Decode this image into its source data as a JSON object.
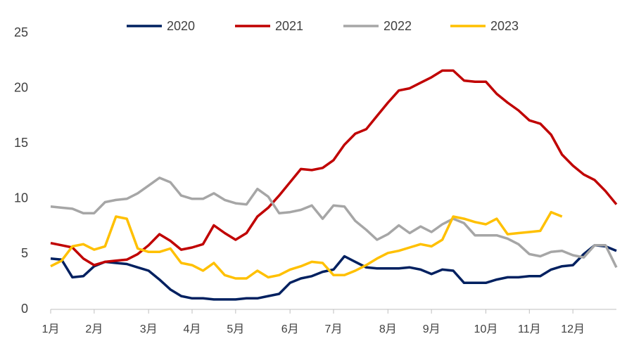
{
  "chart_data": {
    "type": "line",
    "categories": [
      "1月",
      null,
      null,
      null,
      "2月",
      null,
      null,
      null,
      null,
      "3月",
      null,
      null,
      null,
      "4月",
      null,
      null,
      null,
      "5月",
      null,
      null,
      null,
      null,
      "6月",
      null,
      null,
      null,
      "7月",
      null,
      null,
      null,
      null,
      "8月",
      null,
      null,
      null,
      "9月",
      null,
      null,
      null,
      null,
      "10月",
      null,
      null,
      null,
      "11月",
      null,
      null,
      null,
      "12月",
      null,
      null,
      null,
      null
    ],
    "series": [
      {
        "name": "2020",
        "color": "#002060",
        "values": [
          4.6,
          4.5,
          2.9,
          3.0,
          3.9,
          4.3,
          4.2,
          4.1,
          3.8,
          3.5,
          2.7,
          1.8,
          1.2,
          1.0,
          1.0,
          0.9,
          0.9,
          0.9,
          1.0,
          1.0,
          1.2,
          1.4,
          2.4,
          2.8,
          3.0,
          3.4,
          3.6,
          4.8,
          4.3,
          3.8,
          3.7,
          3.7,
          3.7,
          3.8,
          3.6,
          3.2,
          3.6,
          3.5,
          2.4,
          2.4,
          2.4,
          2.7,
          2.9,
          2.9,
          3.0,
          3.0,
          3.6,
          3.9,
          4.0,
          5.0,
          5.8,
          5.7,
          5.3
        ]
      },
      {
        "name": "2021",
        "color": "#c00000",
        "values": [
          6.0,
          5.8,
          5.6,
          4.6,
          4.0,
          4.3,
          4.4,
          4.5,
          5.0,
          5.8,
          6.8,
          6.2,
          5.4,
          5.6,
          5.9,
          7.6,
          6.9,
          6.3,
          6.9,
          8.4,
          9.2,
          10.3,
          11.5,
          12.7,
          12.6,
          12.8,
          13.5,
          14.9,
          15.9,
          16.3,
          17.5,
          18.7,
          19.8,
          20.0,
          20.5,
          21.0,
          21.6,
          21.6,
          20.7,
          20.6,
          20.6,
          19.5,
          18.7,
          18.0,
          17.1,
          16.8,
          15.8,
          14.0,
          13.0,
          12.2,
          11.7,
          10.7,
          9.5
        ]
      },
      {
        "name": "2022",
        "color": "#a6a6a6",
        "values": [
          9.3,
          9.2,
          9.1,
          8.7,
          8.7,
          9.7,
          9.9,
          10.0,
          10.5,
          11.2,
          11.9,
          11.5,
          10.3,
          10.0,
          10.0,
          10.5,
          9.9,
          9.6,
          9.5,
          10.9,
          10.2,
          8.7,
          8.8,
          9.0,
          9.4,
          8.2,
          9.4,
          9.3,
          8.0,
          7.2,
          6.3,
          6.8,
          7.6,
          6.9,
          7.5,
          7.0,
          7.7,
          8.2,
          7.8,
          6.7,
          6.7,
          6.7,
          6.4,
          5.9,
          5.0,
          4.8,
          5.2,
          5.3,
          4.9,
          4.7,
          5.8,
          5.8,
          3.8
        ]
      },
      {
        "name": "2023",
        "color": "#ffc000",
        "values": [
          3.9,
          4.4,
          5.7,
          5.9,
          5.4,
          5.7,
          8.4,
          8.2,
          5.5,
          5.2,
          5.2,
          5.5,
          4.2,
          4.0,
          3.5,
          4.2,
          3.1,
          2.8,
          2.8,
          3.5,
          2.9,
          3.1,
          3.6,
          3.9,
          4.3,
          4.2,
          3.1,
          3.1,
          3.5,
          4.0,
          4.6,
          5.1,
          5.3,
          5.6,
          5.9,
          5.7,
          6.3,
          8.4,
          8.2,
          7.9,
          7.7,
          8.2,
          6.8,
          6.9,
          7.0,
          7.1,
          8.8,
          8.4,
          null,
          null,
          null,
          null,
          null
        ]
      }
    ],
    "ylim": [
      0,
      25
    ],
    "yticks": [
      0,
      5,
      10,
      15,
      20,
      25
    ],
    "legend": "top",
    "grid": false
  }
}
